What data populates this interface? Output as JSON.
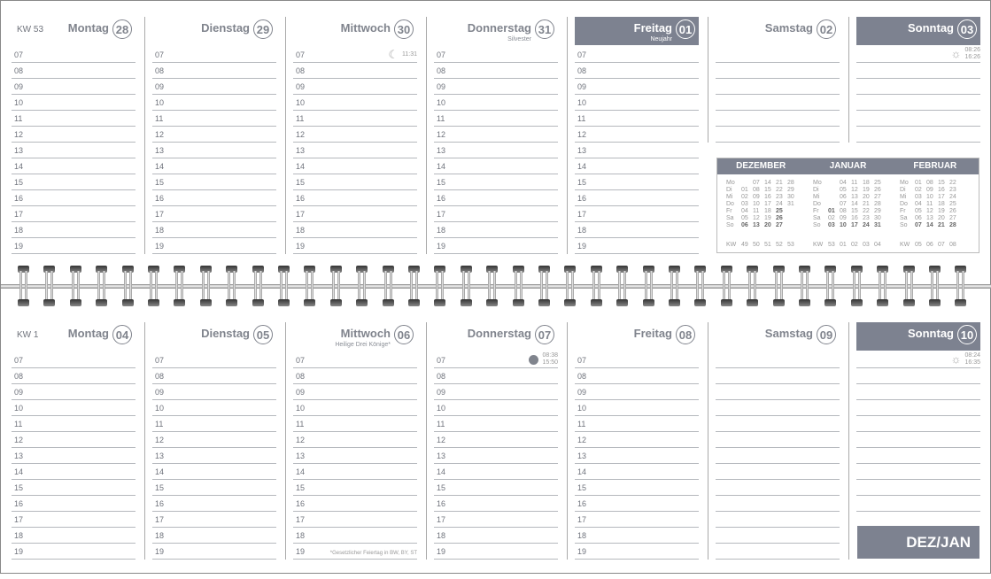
{
  "hours": [
    "07",
    "08",
    "09",
    "10",
    "11",
    "12",
    "13",
    "14",
    "15",
    "16",
    "17",
    "18",
    "19"
  ],
  "weeks": [
    {
      "kw": "KW 53",
      "days": [
        {
          "name": "Montag",
          "num": "28"
        },
        {
          "name": "Dienstag",
          "num": "29"
        },
        {
          "name": "Mittwoch",
          "num": "30",
          "icon": {
            "type": "moon-icon",
            "times": [
              "11:31"
            ]
          }
        },
        {
          "name": "Donnerstag",
          "num": "31",
          "note": "Silvester"
        },
        {
          "name": "Freitag",
          "num": "01",
          "note": "Neujahr",
          "highlight": true
        },
        {
          "name": "Samstag",
          "num": "02",
          "weekend": true,
          "lines": 6
        },
        {
          "name": "Sonntag",
          "num": "03",
          "highlight": true,
          "weekend": true,
          "lines": 6,
          "icon": {
            "type": "sun-icon",
            "times": [
              "08:26",
              "16:26"
            ]
          }
        }
      ]
    },
    {
      "kw": "KW 1",
      "days": [
        {
          "name": "Montag",
          "num": "04"
        },
        {
          "name": "Dienstag",
          "num": "05"
        },
        {
          "name": "Mittwoch",
          "num": "06",
          "note": "Heilige Drei Könige*",
          "footnote": "*Gesetzlicher Feiertag in BW, BY, ST"
        },
        {
          "name": "Donnerstag",
          "num": "07",
          "icon": {
            "type": "full-moon-icon",
            "times": [
              "08:38",
              "15:50"
            ]
          }
        },
        {
          "name": "Freitag",
          "num": "08"
        },
        {
          "name": "Samstag",
          "num": "09",
          "weekend": true,
          "lines": 13
        },
        {
          "name": "Sonntag",
          "num": "10",
          "highlight": true,
          "weekend": true,
          "lines": 10,
          "icon": {
            "type": "sun-icon",
            "times": [
              "08:24",
              "16:35"
            ]
          }
        }
      ]
    }
  ],
  "mini_calendar": {
    "months": [
      {
        "name": "DEZEMBER",
        "labels": [
          "Mo",
          "Di",
          "Mi",
          "Do",
          "Fr",
          "Sa",
          "So"
        ],
        "rows": [
          [
            [
              "",
              0
            ],
            [
              "07",
              0
            ],
            [
              "14",
              0
            ],
            [
              "21",
              0
            ],
            [
              "28",
              0
            ]
          ],
          [
            [
              "01",
              0
            ],
            [
              "08",
              0
            ],
            [
              "15",
              0
            ],
            [
              "22",
              0
            ],
            [
              "29",
              0
            ]
          ],
          [
            [
              "02",
              0
            ],
            [
              "09",
              0
            ],
            [
              "16",
              0
            ],
            [
              "23",
              0
            ],
            [
              "30",
              0
            ]
          ],
          [
            [
              "03",
              0
            ],
            [
              "10",
              0
            ],
            [
              "17",
              0
            ],
            [
              "24",
              0
            ],
            [
              "31",
              0
            ]
          ],
          [
            [
              "04",
              0
            ],
            [
              "11",
              0
            ],
            [
              "18",
              0
            ],
            [
              "25",
              1
            ],
            [
              "",
              0
            ]
          ],
          [
            [
              "05",
              0
            ],
            [
              "12",
              0
            ],
            [
              "19",
              0
            ],
            [
              "26",
              1
            ],
            [
              "",
              0
            ]
          ],
          [
            [
              "06",
              1
            ],
            [
              "13",
              1
            ],
            [
              "20",
              1
            ],
            [
              "27",
              1
            ],
            [
              "",
              0
            ]
          ]
        ],
        "kw_label": "KW",
        "kw": [
          "49",
          "50",
          "51",
          "52",
          "53"
        ]
      },
      {
        "name": "JANUAR",
        "labels": [
          "Mo",
          "Di",
          "Mi",
          "Do",
          "Fr",
          "Sa",
          "So"
        ],
        "rows": [
          [
            [
              "",
              0
            ],
            [
              "04",
              0
            ],
            [
              "11",
              0
            ],
            [
              "18",
              0
            ],
            [
              "25",
              0
            ]
          ],
          [
            [
              "",
              0
            ],
            [
              "05",
              0
            ],
            [
              "12",
              0
            ],
            [
              "19",
              0
            ],
            [
              "26",
              0
            ]
          ],
          [
            [
              "",
              0
            ],
            [
              "06",
              0
            ],
            [
              "13",
              0
            ],
            [
              "20",
              0
            ],
            [
              "27",
              0
            ]
          ],
          [
            [
              "",
              0
            ],
            [
              "07",
              0
            ],
            [
              "14",
              0
            ],
            [
              "21",
              0
            ],
            [
              "28",
              0
            ]
          ],
          [
            [
              "01",
              1
            ],
            [
              "08",
              0
            ],
            [
              "15",
              0
            ],
            [
              "22",
              0
            ],
            [
              "29",
              0
            ]
          ],
          [
            [
              "02",
              0
            ],
            [
              "09",
              0
            ],
            [
              "16",
              0
            ],
            [
              "23",
              0
            ],
            [
              "30",
              0
            ]
          ],
          [
            [
              "03",
              1
            ],
            [
              "10",
              1
            ],
            [
              "17",
              1
            ],
            [
              "24",
              1
            ],
            [
              "31",
              1
            ]
          ]
        ],
        "kw_label": "KW",
        "kw": [
          "53",
          "01",
          "02",
          "03",
          "04"
        ]
      },
      {
        "name": "FEBRUAR",
        "labels": [
          "Mo",
          "Di",
          "Mi",
          "Do",
          "Fr",
          "Sa",
          "So"
        ],
        "rows": [
          [
            [
              "01",
              0
            ],
            [
              "08",
              0
            ],
            [
              "15",
              0
            ],
            [
              "22",
              0
            ]
          ],
          [
            [
              "02",
              0
            ],
            [
              "09",
              0
            ],
            [
              "16",
              0
            ],
            [
              "23",
              0
            ]
          ],
          [
            [
              "03",
              0
            ],
            [
              "10",
              0
            ],
            [
              "17",
              0
            ],
            [
              "24",
              0
            ]
          ],
          [
            [
              "04",
              0
            ],
            [
              "11",
              0
            ],
            [
              "18",
              0
            ],
            [
              "25",
              0
            ]
          ],
          [
            [
              "05",
              0
            ],
            [
              "12",
              0
            ],
            [
              "19",
              0
            ],
            [
              "26",
              0
            ]
          ],
          [
            [
              "06",
              0
            ],
            [
              "13",
              0
            ],
            [
              "20",
              0
            ],
            [
              "27",
              0
            ]
          ],
          [
            [
              "07",
              1
            ],
            [
              "14",
              1
            ],
            [
              "21",
              1
            ],
            [
              "28",
              1
            ]
          ]
        ],
        "kw_label": "KW",
        "kw": [
          "05",
          "06",
          "07",
          "08"
        ]
      }
    ]
  },
  "month_tag": "DEZ/JAN",
  "colors": {
    "accent": "#7d8290",
    "text": "#6f737c"
  }
}
